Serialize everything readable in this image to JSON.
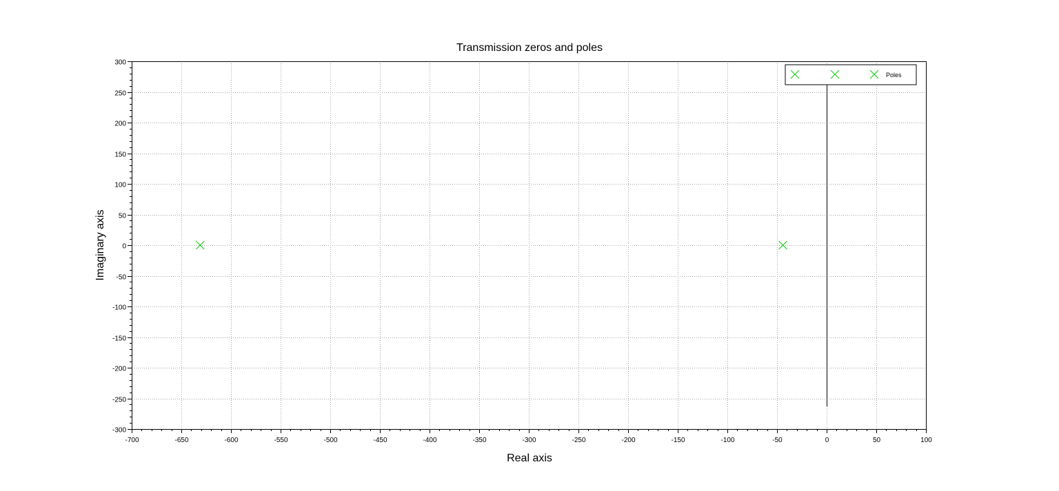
{
  "chart_data": {
    "type": "scatter",
    "title": "Transmission zeros and poles",
    "xlabel": "Real axis",
    "ylabel": "Imaginary axis",
    "xlim": [
      -700,
      100
    ],
    "ylim": [
      -300,
      300
    ],
    "x_ticks": [
      -700,
      -650,
      -600,
      -550,
      -500,
      -450,
      -400,
      -350,
      -300,
      -250,
      -200,
      -150,
      -100,
      -50,
      0,
      50,
      100
    ],
    "y_ticks": [
      -300,
      -250,
      -200,
      -150,
      -100,
      -50,
      0,
      50,
      100,
      150,
      200,
      250,
      300
    ],
    "x_tick_labels": [
      "-700",
      "-650",
      "-600",
      "-550",
      "-500",
      "-450",
      "-400",
      "-350",
      "-300",
      "-250",
      "-200",
      "-150",
      "-100",
      "-50",
      "0",
      "50",
      "100"
    ],
    "y_tick_labels": [
      "-300",
      "-250",
      "-200",
      "-150",
      "-100",
      "-50",
      "0",
      "50",
      "100",
      "150",
      "200",
      "250",
      "300"
    ],
    "grid": true,
    "legend_position": "top-right",
    "series": [
      {
        "name": "Poles",
        "marker": "x",
        "color": "#22cc22",
        "points": [
          {
            "x": -631,
            "y": 0
          },
          {
            "x": -44,
            "y": 0
          }
        ]
      }
    ],
    "imaginary_axis_line": {
      "x": 0,
      "y_from": -263,
      "y_to": 262
    }
  }
}
